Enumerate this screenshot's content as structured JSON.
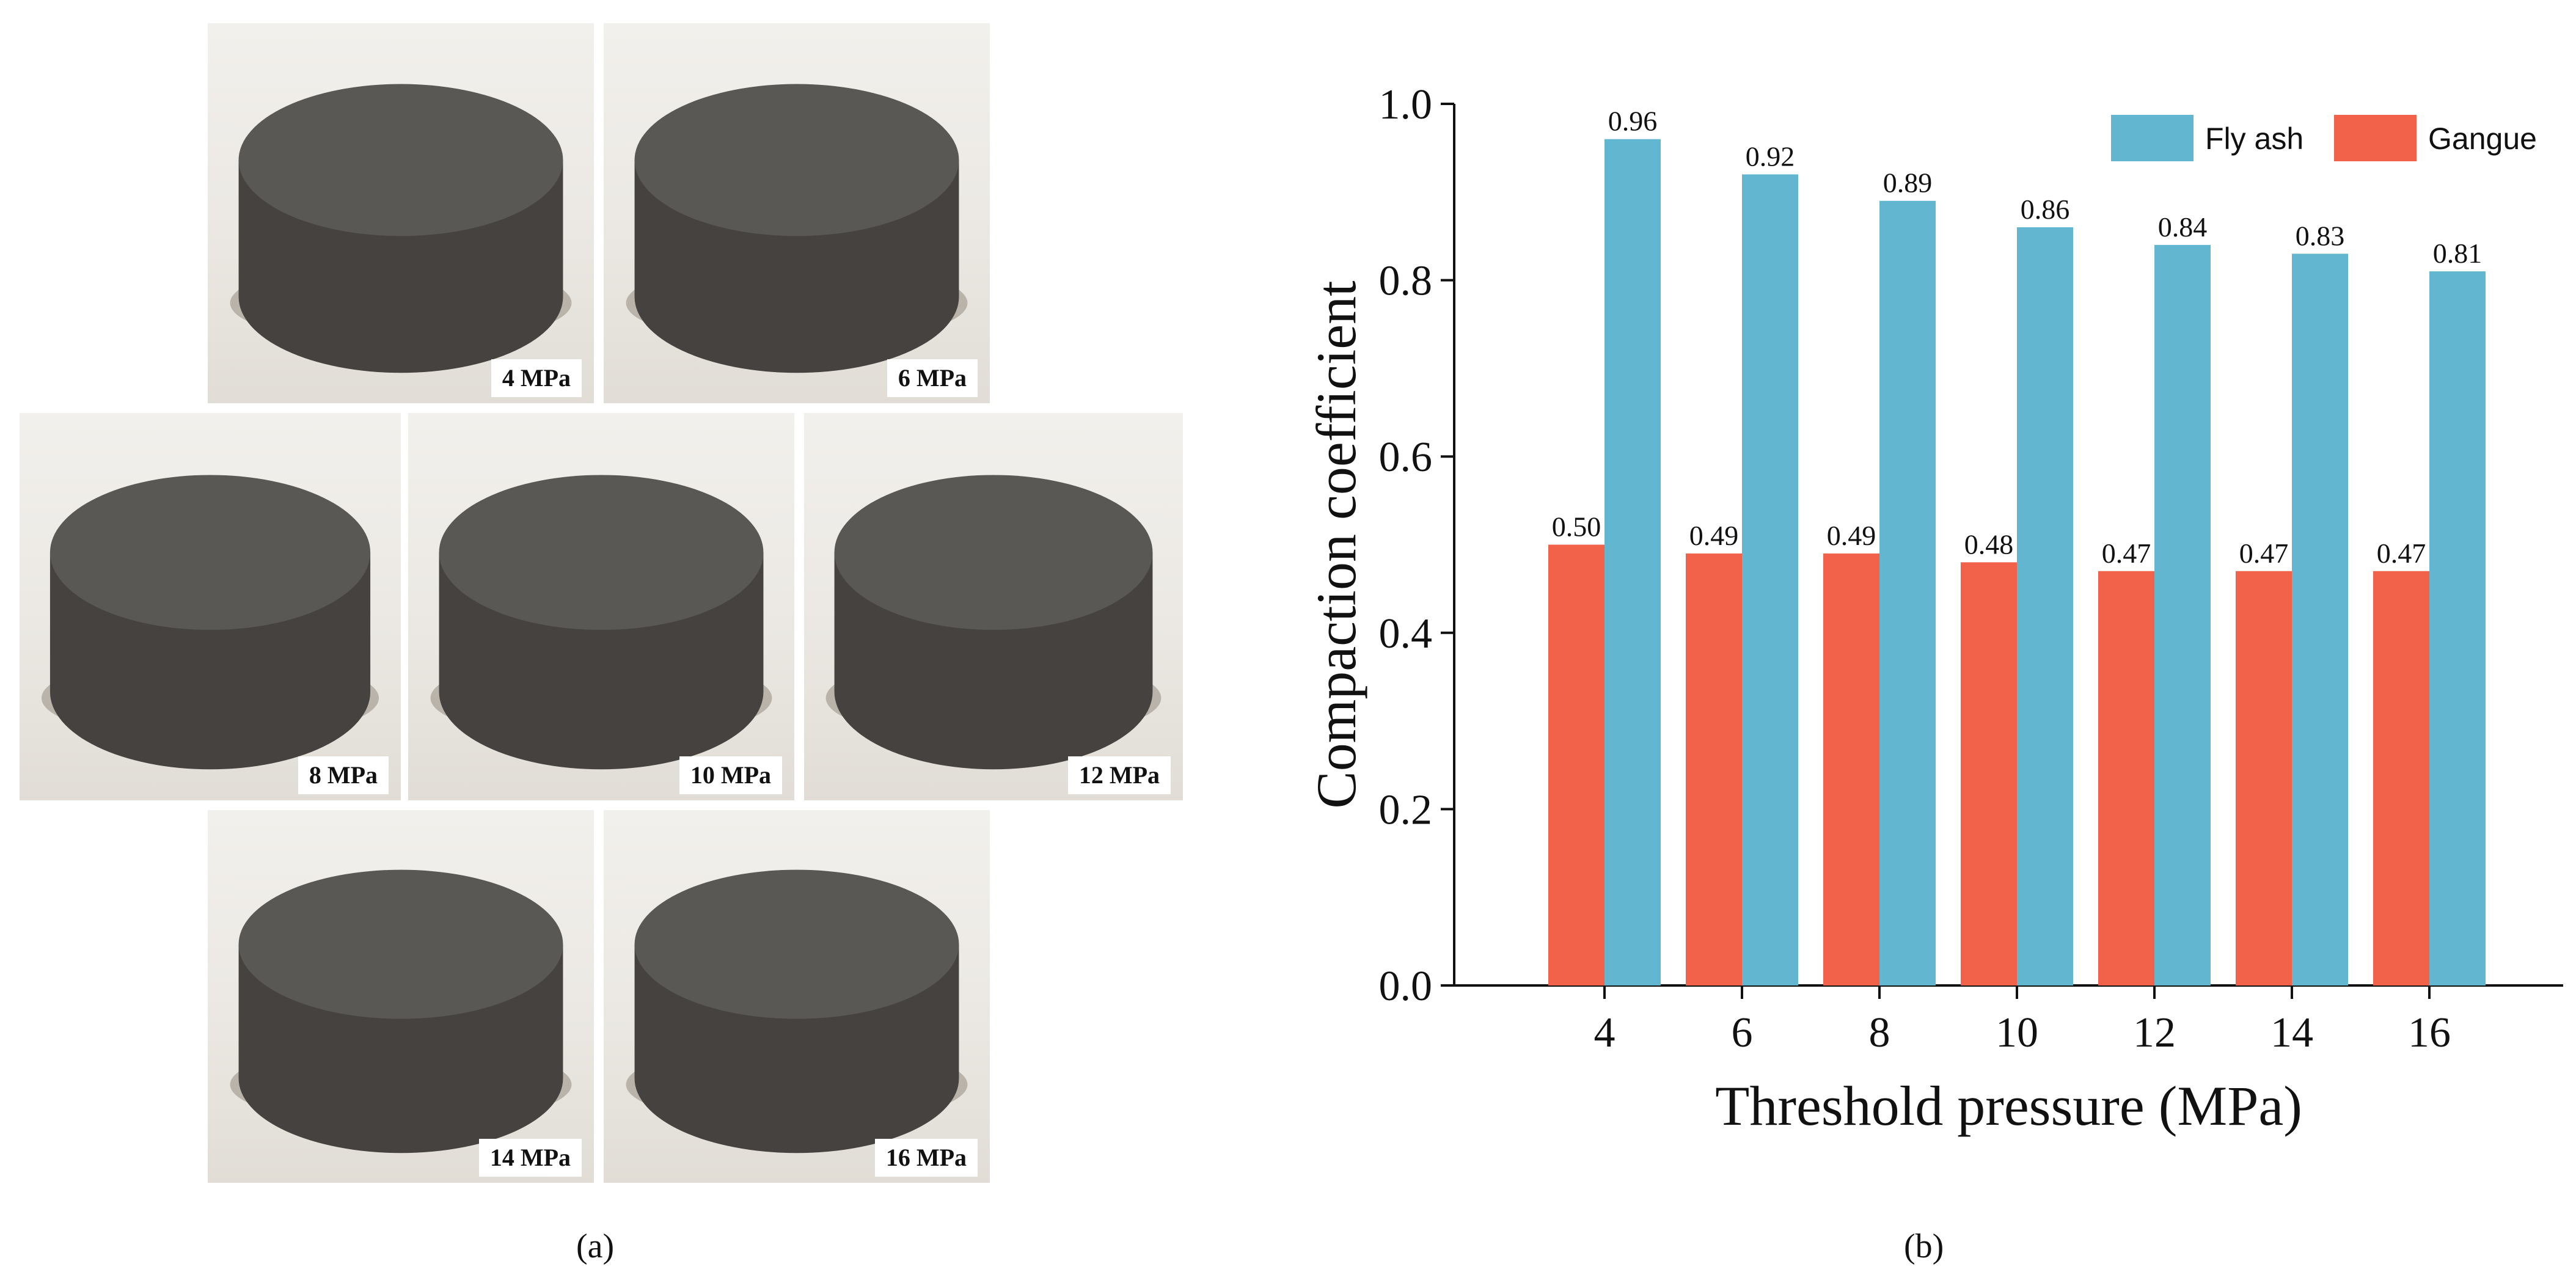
{
  "figure": {
    "caption_a": "(a)",
    "caption_b": "(b)"
  },
  "photos": [
    {
      "label": "4 MPa"
    },
    {
      "label": "6 MPa"
    },
    {
      "label": "8 MPa"
    },
    {
      "label": "10 MPa"
    },
    {
      "label": "12 MPa"
    },
    {
      "label": "14 MPa"
    },
    {
      "label": "16 MPa"
    }
  ],
  "colors": {
    "fly_ash": "#62b6cf",
    "gangue": "#f2624a",
    "specimen": "#45423f",
    "specimen_top": "#5a5855"
  },
  "chart_data": {
    "type": "bar",
    "title": "",
    "xlabel": "Threshold pressure (MPa)",
    "ylabel": "Compaction coefficient",
    "categories": [
      "4",
      "6",
      "8",
      "10",
      "12",
      "14",
      "16"
    ],
    "ylim": [
      0.0,
      1.0
    ],
    "yticks": [
      "0.0",
      "0.2",
      "0.4",
      "0.6",
      "0.8",
      "1.0"
    ],
    "legend_position": "top-right",
    "grid": false,
    "series": [
      {
        "name": "Gangue",
        "values": [
          0.5,
          0.49,
          0.49,
          0.48,
          0.47,
          0.47,
          0.47
        ],
        "labels": [
          "0.50",
          "0.49",
          "0.49",
          "0.48",
          "0.47",
          "0.47",
          "0.47"
        ]
      },
      {
        "name": "Fly ash",
        "values": [
          0.96,
          0.92,
          0.89,
          0.86,
          0.84,
          0.83,
          0.81
        ],
        "labels": [
          "0.96",
          "0.92",
          "0.89",
          "0.86",
          "0.84",
          "0.83",
          "0.81"
        ]
      }
    ],
    "legend_order": [
      "Fly ash",
      "Gangue"
    ]
  }
}
